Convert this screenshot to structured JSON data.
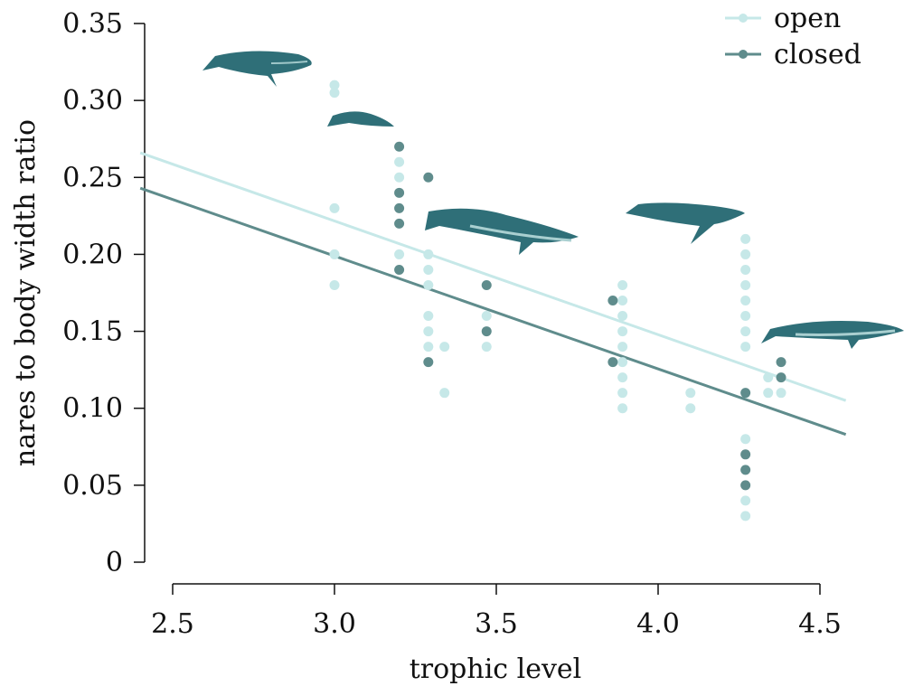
{
  "chart_data": {
    "type": "scatter",
    "title": "",
    "xlabel": "trophic level",
    "ylabel": "nares to body width ratio",
    "xlim": [
      2.4,
      4.6
    ],
    "ylim": [
      0,
      0.35
    ],
    "xticks": [
      "2.5",
      "3.0",
      "3.5",
      "4.0",
      "4.5"
    ],
    "yticks": [
      "0",
      "0.05",
      "0.10",
      "0.15",
      "0.20",
      "0.25",
      "0.30",
      "0.35"
    ],
    "grid": false,
    "legend_position": "top-right",
    "series": [
      {
        "name": "open",
        "color": "#c6e8e8",
        "points": [
          [
            3.0,
            0.31
          ],
          [
            3.0,
            0.305
          ],
          [
            3.0,
            0.23
          ],
          [
            3.0,
            0.2
          ],
          [
            3.0,
            0.18
          ],
          [
            3.2,
            0.26
          ],
          [
            3.2,
            0.25
          ],
          [
            3.2,
            0.2
          ],
          [
            3.29,
            0.2
          ],
          [
            3.29,
            0.19
          ],
          [
            3.29,
            0.18
          ],
          [
            3.29,
            0.16
          ],
          [
            3.29,
            0.15
          ],
          [
            3.29,
            0.14
          ],
          [
            3.34,
            0.14
          ],
          [
            3.34,
            0.11
          ],
          [
            3.47,
            0.16
          ],
          [
            3.47,
            0.14
          ],
          [
            3.89,
            0.18
          ],
          [
            3.89,
            0.17
          ],
          [
            3.89,
            0.16
          ],
          [
            3.89,
            0.15
          ],
          [
            3.89,
            0.14
          ],
          [
            3.89,
            0.13
          ],
          [
            3.89,
            0.12
          ],
          [
            3.89,
            0.11
          ],
          [
            3.89,
            0.1
          ],
          [
            4.1,
            0.11
          ],
          [
            4.1,
            0.1
          ],
          [
            4.27,
            0.21
          ],
          [
            4.27,
            0.2
          ],
          [
            4.27,
            0.19
          ],
          [
            4.27,
            0.18
          ],
          [
            4.27,
            0.17
          ],
          [
            4.27,
            0.16
          ],
          [
            4.27,
            0.15
          ],
          [
            4.27,
            0.14
          ],
          [
            4.27,
            0.08
          ],
          [
            4.27,
            0.04
          ],
          [
            4.27,
            0.03
          ],
          [
            4.34,
            0.12
          ],
          [
            4.34,
            0.11
          ],
          [
            4.38,
            0.11
          ]
        ],
        "trend": {
          "x": [
            2.4,
            4.58
          ],
          "y": [
            0.266,
            0.105
          ]
        }
      },
      {
        "name": "closed",
        "color": "#5f8c8c",
        "points": [
          [
            3.2,
            0.27
          ],
          [
            3.2,
            0.24
          ],
          [
            3.2,
            0.23
          ],
          [
            3.2,
            0.22
          ],
          [
            3.2,
            0.19
          ],
          [
            3.29,
            0.25
          ],
          [
            3.29,
            0.13
          ],
          [
            3.47,
            0.18
          ],
          [
            3.47,
            0.15
          ],
          [
            3.86,
            0.17
          ],
          [
            3.86,
            0.13
          ],
          [
            4.27,
            0.11
          ],
          [
            4.27,
            0.07
          ],
          [
            4.27,
            0.06
          ],
          [
            4.27,
            0.05
          ],
          [
            4.38,
            0.13
          ],
          [
            4.38,
            0.12
          ]
        ],
        "trend": {
          "x": [
            2.4,
            4.58
          ],
          "y": [
            0.243,
            0.083
          ]
        }
      }
    ]
  }
}
